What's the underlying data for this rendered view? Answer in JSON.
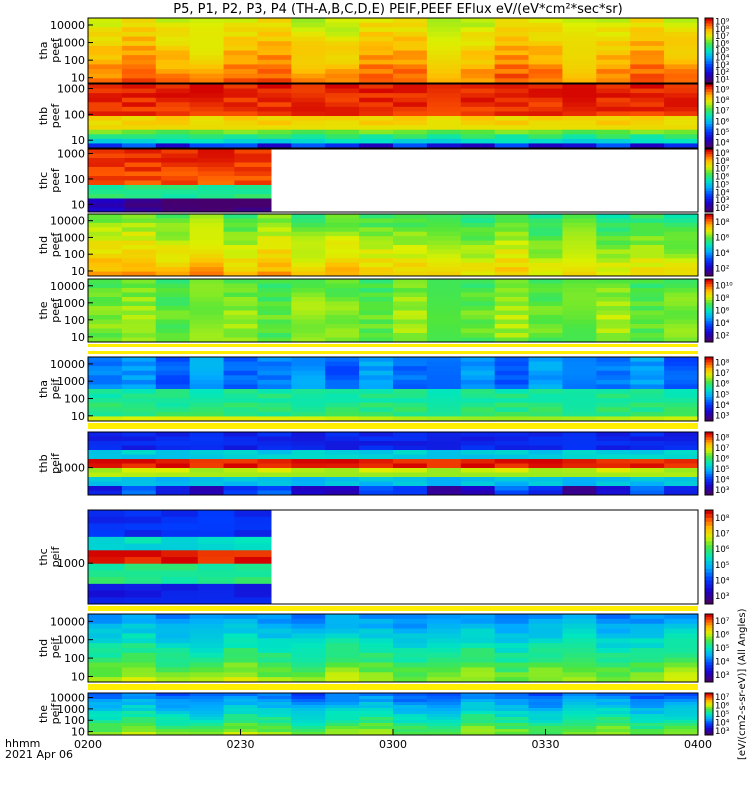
{
  "figure": {
    "title": "P5, P1, P2, P3, P4 (TH-A,B,C,D,E) PEIF,PEEF EFlux eV/(eV*cm²*sec*sr)",
    "time_axis_label": "hhmm",
    "date_label": "2021 Apr 06",
    "colorbar_title": "[eV/(cm2-s-sr-eV)] (All Angles)"
  },
  "chart_data": {
    "type": "heatmap",
    "x": {
      "tick_labels": [
        "0200",
        "0230",
        "0300",
        "0330",
        "0400"
      ],
      "range": [
        "0200",
        "0400"
      ]
    },
    "panels": [
      {
        "probe": "tha",
        "product": "peef",
        "ylabel": "tha\npeef",
        "yticks": [
          "10000",
          "1000",
          "100",
          "10"
        ],
        "ylim": [
          5,
          25000
        ],
        "cbar_ticks": [
          "10⁹",
          "10⁸",
          "10⁷",
          "10⁶",
          "10⁵",
          "10⁴",
          "10³",
          "10²",
          "10¹"
        ],
        "data_end": "0400",
        "colormap": "rainbow"
      },
      {
        "probe": "thb",
        "product": "peef",
        "ylabel": "thb\npeef",
        "yticks": [
          "1000",
          "100",
          "10"
        ],
        "ylim": [
          5,
          1500
        ],
        "cbar_ticks": [
          "10⁹",
          "10⁸",
          "10⁷",
          "10⁶",
          "10⁵",
          "10⁴"
        ],
        "data_end": "0400",
        "colormap": "rainbow"
      },
      {
        "probe": "thc",
        "product": "peef",
        "ylabel": "thc\npeef",
        "yticks": [
          "1000",
          "100",
          "10"
        ],
        "ylim": [
          5,
          1500
        ],
        "cbar_ticks": [
          "10⁹",
          "10⁸",
          "10⁷",
          "10⁶",
          "10⁵",
          "10⁴",
          "10³",
          "10²"
        ],
        "data_end": "0236",
        "colormap": "rainbow"
      },
      {
        "probe": "thd",
        "product": "peef",
        "ylabel": "thd\npeef",
        "yticks": [
          "10000",
          "1000",
          "100",
          "10"
        ],
        "ylim": [
          5,
          25000
        ],
        "cbar_ticks": [
          "10⁸",
          "10⁶",
          "10⁴",
          "10²"
        ],
        "data_end": "0400",
        "colormap": "rainbow"
      },
      {
        "probe": "the",
        "product": "peef",
        "ylabel": "the\npeef",
        "yticks": [
          "10000",
          "1000",
          "100",
          "10"
        ],
        "ylim": [
          5,
          25000
        ],
        "cbar_ticks": [
          "10¹⁰",
          "10⁸",
          "10⁶",
          "10⁴",
          "10²"
        ],
        "data_end": "0400",
        "colormap": "rainbow"
      },
      {
        "probe": "tha",
        "product": "peif",
        "ylabel": "tha\npeif",
        "yticks": [
          "10000",
          "1000",
          "100",
          "10"
        ],
        "ylim": [
          5,
          25000
        ],
        "cbar_ticks": [
          "10⁸",
          "10⁷",
          "10⁶",
          "10⁵",
          "10⁴",
          "10³"
        ],
        "data_end": "0400",
        "colormap": "rainbow"
      },
      {
        "probe": "thb",
        "product": "peif",
        "ylabel": "thb\npeif",
        "yticks": [
          "1000"
        ],
        "ylim": [
          100,
          20000
        ],
        "cbar_ticks": [
          "10⁸",
          "10⁷",
          "10⁶",
          "10⁵",
          "10⁴",
          "10³"
        ],
        "data_end": "0400",
        "colormap": "rainbow"
      },
      {
        "probe": "thc",
        "product": "peif",
        "ylabel": "thc\npeif",
        "yticks": [
          "1000"
        ],
        "ylim": [
          100,
          20000
        ],
        "cbar_ticks": [
          "10⁸",
          "10⁷",
          "10⁶",
          "10⁵",
          "10⁴",
          "10³"
        ],
        "data_end": "0236",
        "colormap": "rainbow"
      },
      {
        "probe": "thd",
        "product": "peif",
        "ylabel": "thd\npeif",
        "yticks": [
          "10000",
          "1000",
          "100",
          "10"
        ],
        "ylim": [
          5,
          25000
        ],
        "cbar_ticks": [
          "10⁷",
          "10⁶",
          "10⁵",
          "10⁴",
          "10³"
        ],
        "data_end": "0400",
        "colormap": "rainbow"
      },
      {
        "probe": "the",
        "product": "peif",
        "ylabel": "the\npeif",
        "yticks": [
          "10000",
          "1000",
          "100",
          "10"
        ],
        "ylim": [
          5,
          25000
        ],
        "cbar_ticks": [
          "10⁷",
          "10⁶",
          "10⁵",
          "10⁴",
          "10³"
        ],
        "data_end": "0400",
        "colormap": "rainbow"
      }
    ]
  }
}
